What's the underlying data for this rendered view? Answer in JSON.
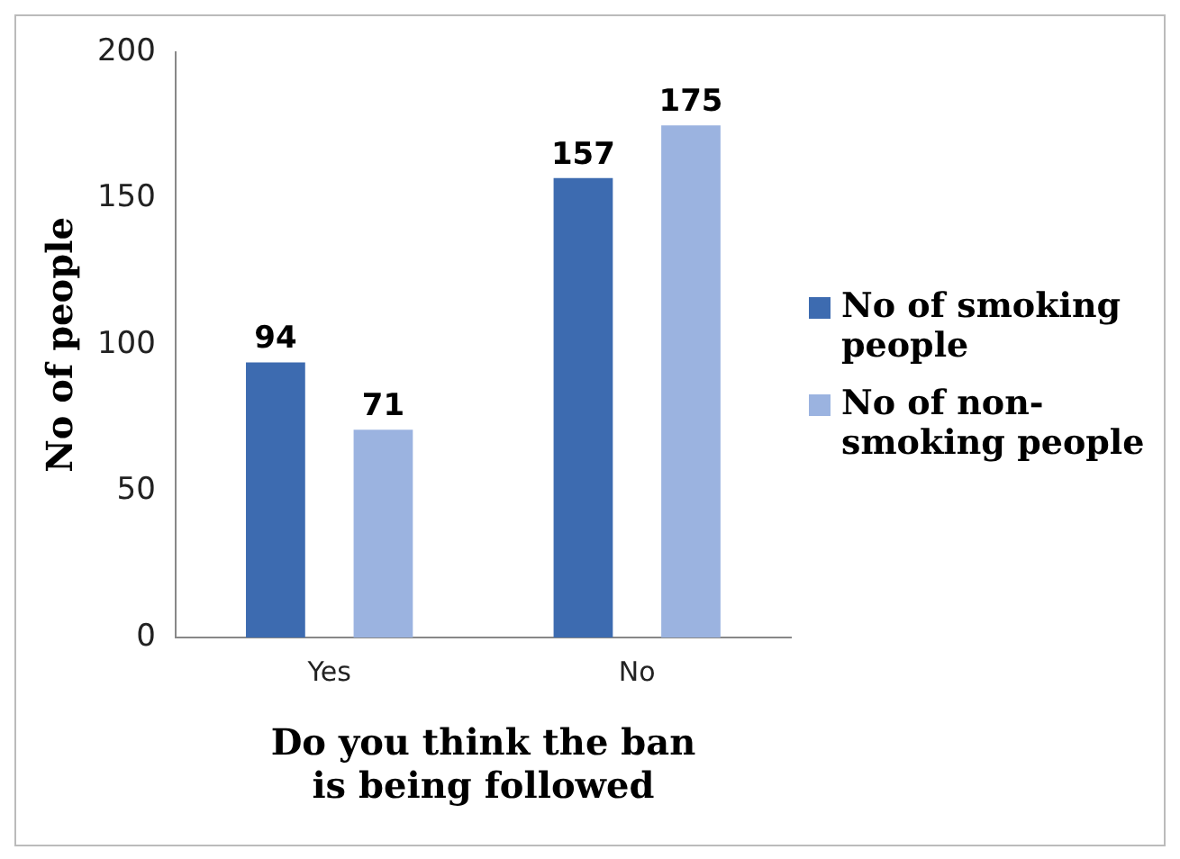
{
  "chart_data": {
    "type": "bar",
    "xlabel": "Do you think the ban is being followed",
    "ylabel": "No of people",
    "categories": [
      "Yes",
      "No"
    ],
    "series": [
      {
        "name": "No of smoking people",
        "color": "#3d6bb0",
        "values": [
          94,
          157
        ]
      },
      {
        "name": "No of non-smoking people",
        "color": "#9bb3e0",
        "values": [
          71,
          175
        ]
      }
    ],
    "ylim": [
      0,
      200
    ],
    "yticks": [
      0,
      50,
      100,
      150,
      200
    ],
    "grid": false,
    "legend": "right",
    "data_labels": true
  }
}
